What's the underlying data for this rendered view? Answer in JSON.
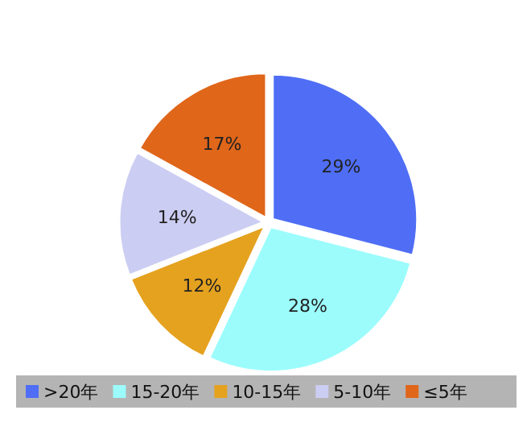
{
  "chart_data": {
    "type": "pie",
    "categories": [
      ">20年",
      "15-20年",
      "10-15年",
      "5-10年",
      "≤5年"
    ],
    "values": [
      29,
      28,
      12,
      14,
      17
    ],
    "value_labels": [
      "29%",
      "28%",
      "12%",
      "14%",
      "17%"
    ],
    "colors": [
      "#4f6ef5",
      "#9cfcfc",
      "#e5a21f",
      "#cccdf2",
      "#e0661a"
    ],
    "legend": "bottom"
  }
}
